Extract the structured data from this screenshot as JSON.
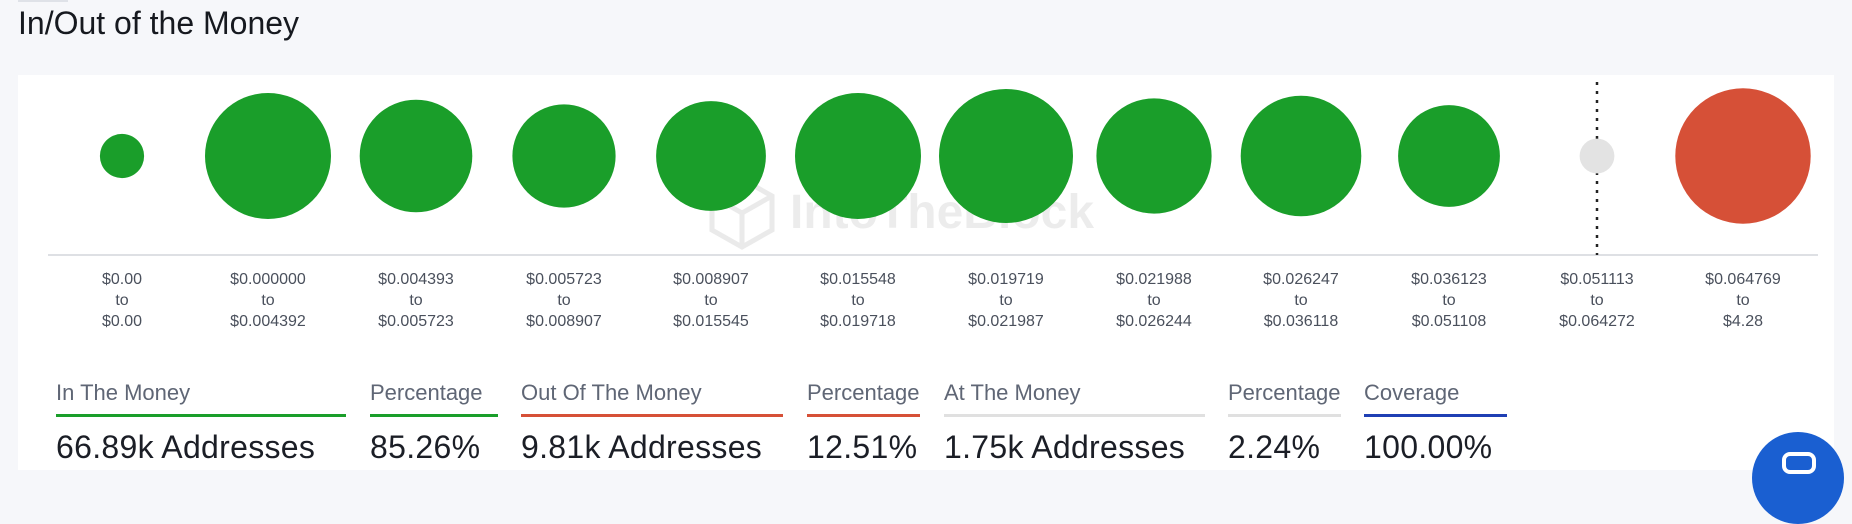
{
  "title": "In/Out of the Money",
  "watermark": "IntoTheBlock",
  "colors": {
    "in_money": "#1a9e2a",
    "out_money": "#d65037",
    "at_money": "#e3e3e3",
    "coverage": "#1f3fb4",
    "rule_neutral": "#e0e0e0"
  },
  "chart_data": {
    "type": "bubble",
    "title": "In/Out of the Money",
    "buckets": [
      {
        "from": "$0.00",
        "to_word": "to",
        "to": "$0.00",
        "status": "in",
        "size": 0.33
      },
      {
        "from": "$0.000000",
        "to_word": "to",
        "to": "$0.004392",
        "status": "in",
        "size": 0.94
      },
      {
        "from": "$0.004393",
        "to_word": "to",
        "to": "$0.005723",
        "status": "in",
        "size": 0.84
      },
      {
        "from": "$0.005723",
        "to_word": "to",
        "to": "$0.008907",
        "status": "in",
        "size": 0.77
      },
      {
        "from": "$0.008907",
        "to_word": "to",
        "to": "$0.015545",
        "status": "in",
        "size": 0.82
      },
      {
        "from": "$0.015548",
        "to_word": "to",
        "to": "$0.019718",
        "status": "in",
        "size": 0.94
      },
      {
        "from": "$0.019719",
        "to_word": "to",
        "to": "$0.021987",
        "status": "in",
        "size": 1.0
      },
      {
        "from": "$0.021988",
        "to_word": "to",
        "to": "$0.026244",
        "status": "in",
        "size": 0.86
      },
      {
        "from": "$0.026247",
        "to_word": "to",
        "to": "$0.036118",
        "status": "in",
        "size": 0.9
      },
      {
        "from": "$0.036123",
        "to_word": "to",
        "to": "$0.051108",
        "status": "in",
        "size": 0.76
      },
      {
        "from": "$0.051113",
        "to_word": "to",
        "to": "$0.064272",
        "status": "at",
        "size": 0.26
      },
      {
        "from": "$0.064769",
        "to_word": "to",
        "to": "$4.28",
        "status": "out",
        "size": 1.01
      }
    ],
    "current_price_bucket": 10
  },
  "stats": [
    {
      "label": "In The Money",
      "value": "66.89k Addresses",
      "color": "#1a9e2a"
    },
    {
      "label": "Percentage",
      "value": "85.26%",
      "color": "#1a9e2a"
    },
    {
      "label": "Out Of The Money",
      "value": "9.81k Addresses",
      "color": "#d65037"
    },
    {
      "label": "Percentage",
      "value": "12.51%",
      "color": "#d65037"
    },
    {
      "label": "At The Money",
      "value": "1.75k Addresses",
      "color": "#e0e0e0"
    },
    {
      "label": "Percentage",
      "value": "2.24%",
      "color": "#e0e0e0"
    },
    {
      "label": "Coverage",
      "value": "100.00%",
      "color": "#1f3fb4"
    }
  ]
}
